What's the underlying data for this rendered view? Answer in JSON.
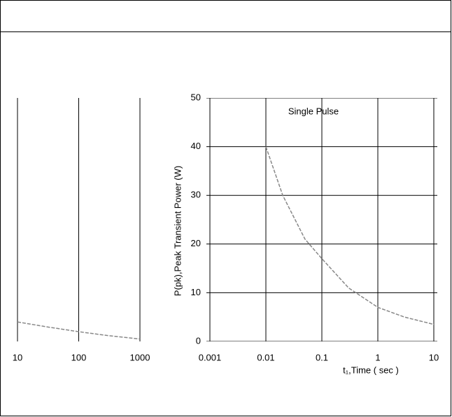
{
  "chart_data": [
    {
      "type": "line",
      "xscale": "log",
      "grid": true,
      "x": [
        10,
        30,
        100,
        300,
        1000
      ],
      "series": [
        {
          "color": "#888888",
          "values": [
            4,
            3,
            2,
            1.2,
            0.5
          ]
        }
      ],
      "xlim": [
        10,
        1000
      ],
      "xticks": [
        10,
        100,
        1000
      ],
      "ylim": [
        0,
        50
      ]
    },
    {
      "type": "line",
      "xscale": "log",
      "grid": true,
      "annotation": "Single Pulse",
      "x_label": "t₁,Time ( sec )",
      "y_label": "P(pk),Peak Transient Power (W)",
      "x": [
        0.01,
        0.02,
        0.05,
        0.1,
        0.3,
        1,
        3,
        10
      ],
      "series": [
        {
          "color": "#888888",
          "values": [
            40,
            30,
            21,
            17,
            11,
            7,
            5,
            3.5
          ]
        }
      ],
      "xlim": [
        0.001,
        10
      ],
      "xticks": [
        0.001,
        0.01,
        0.1,
        1,
        10
      ],
      "ylim": [
        0,
        50
      ],
      "yticks": [
        0,
        10,
        20,
        30,
        40,
        50
      ]
    }
  ]
}
